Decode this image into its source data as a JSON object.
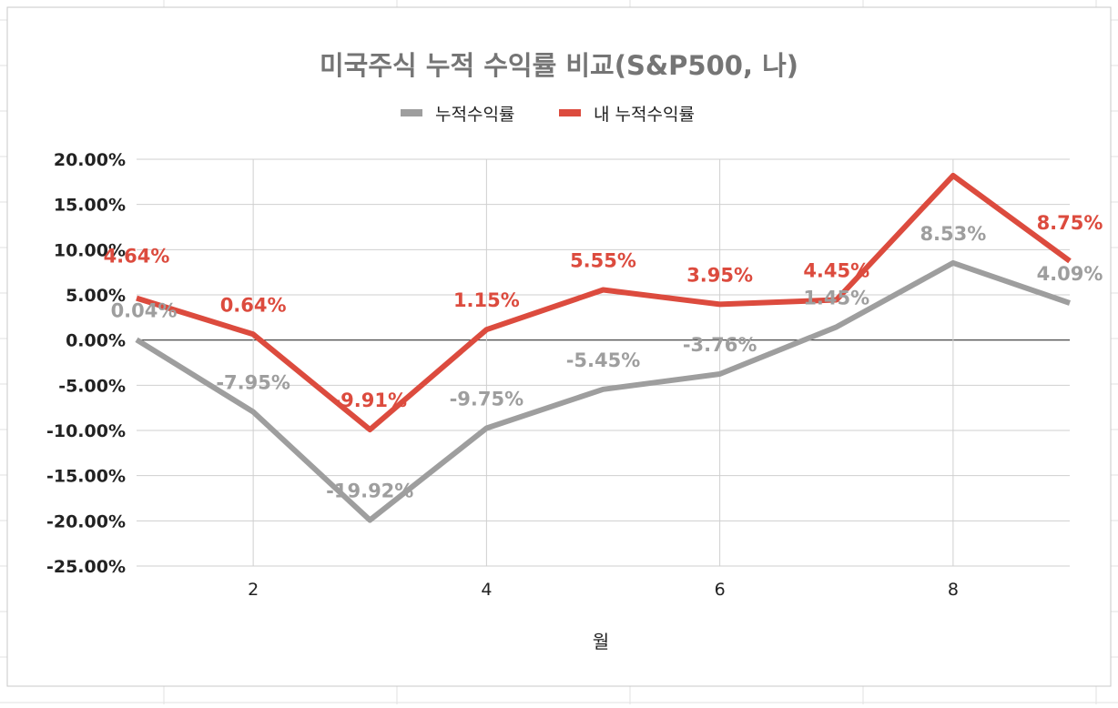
{
  "chart_data": {
    "type": "line",
    "title": "미국주식 누적 수익률 비교(S&P500, 나)",
    "xlabel": "월",
    "ylabel": "",
    "x": [
      1,
      2,
      3,
      4,
      5,
      6,
      7,
      8,
      9
    ],
    "x_ticks": [
      2,
      4,
      6,
      8
    ],
    "ylim": [
      -25,
      20
    ],
    "y_ticks": [
      20,
      15,
      10,
      5,
      0,
      -5,
      -10,
      -15,
      -20,
      -25
    ],
    "y_tick_labels": [
      "20.00%",
      "15.00%",
      "10.00%",
      "5.00%",
      "0.00%",
      "-5.00%",
      "-10.00%",
      "-15.00%",
      "-20.00%",
      "-25.00%"
    ],
    "grid": true,
    "legend_position": "top",
    "series": [
      {
        "name": "누적수익률",
        "color": "#9e9e9e",
        "values": [
          0.04,
          -7.95,
          -19.92,
          -9.75,
          -5.45,
          -3.76,
          1.45,
          8.53,
          4.09
        ],
        "labels": [
          "0.04%",
          "-7.95%",
          "-19.92%",
          "-9.75%",
          "-5.45%",
          "-3.76%",
          "1.45%",
          "8.53%",
          "4.09%"
        ]
      },
      {
        "name": "내 누적수익률",
        "color": "#dc4b3e",
        "values": [
          4.64,
          0.64,
          -9.91,
          1.15,
          5.55,
          3.95,
          4.45,
          18.2,
          8.75
        ],
        "labels": [
          "4.64%",
          "0.64%",
          "-9.91%",
          "1.15%",
          "5.55%",
          "3.95%",
          "4.45%",
          "",
          "8.75%"
        ]
      }
    ]
  }
}
